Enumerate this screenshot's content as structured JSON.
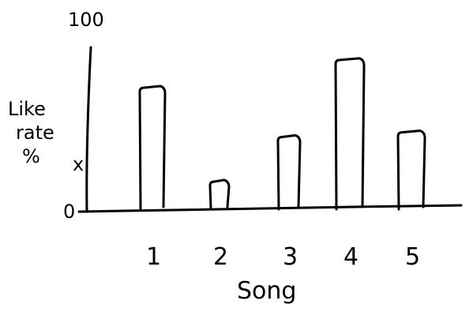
{
  "chart_data": {
    "type": "bar",
    "xlabel": "Song",
    "ylabel": "Like rate %",
    "ylabel_lines": [
      "Like",
      "rate",
      "%"
    ],
    "categories": [
      "1",
      "2",
      "3",
      "4",
      "5"
    ],
    "values": [
      79,
      18,
      47,
      97,
      50
    ],
    "ylim": [
      0,
      100
    ],
    "y_tick_labels": [
      "0",
      "x",
      "100"
    ],
    "x_marker_value": 29,
    "grid": false,
    "legend": "none"
  },
  "colors": {
    "ink": "#000000",
    "background": "#ffffff"
  }
}
